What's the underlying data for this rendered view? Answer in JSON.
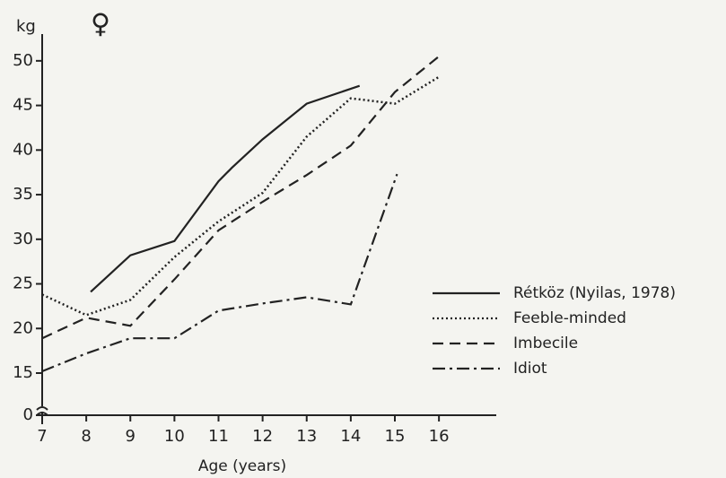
{
  "chart_data": {
    "type": "line",
    "title": "♀",
    "y_label": "kg",
    "x_label": "Age (years)",
    "xlim": [
      7,
      17.3
    ],
    "ylim": [
      0,
      53
    ],
    "axis_break": true,
    "xticks": [
      7,
      8,
      9,
      10,
      11,
      12,
      13,
      14,
      15,
      16
    ],
    "yticks": [
      0,
      15,
      20,
      25,
      30,
      35,
      40,
      45,
      50
    ],
    "grid": false,
    "legend": "right",
    "series": [
      {
        "name": "Rétköz (Nyilas, 1978)",
        "color": "#222222",
        "dash": "solid",
        "x": [
          8.1,
          9,
          10,
          11,
          11.3,
          12,
          13,
          14.2
        ],
        "values": [
          24.1,
          28.2,
          29.8,
          36.5,
          38,
          41.2,
          45.2,
          47.2
        ]
      },
      {
        "name": "Feeble-minded",
        "color": "#222222",
        "dash": "dotted",
        "x": [
          7,
          8,
          9,
          10,
          11,
          12,
          13,
          14,
          15,
          16
        ],
        "values": [
          23.8,
          21.5,
          23.2,
          28,
          32,
          35.2,
          41.5,
          45.8,
          45.2,
          48.2
        ]
      },
      {
        "name": "Imbecile",
        "color": "#222222",
        "dash": "dashed",
        "x": [
          7,
          8,
          9,
          10,
          11,
          12,
          13,
          14,
          15,
          16
        ],
        "values": [
          18.9,
          21.2,
          20.3,
          25.5,
          31,
          34.2,
          37.2,
          40.5,
          46.5,
          50.5
        ]
      },
      {
        "name": "Idiot",
        "color": "#222222",
        "dash": "dashdot",
        "x": [
          7,
          8,
          9,
          10,
          11,
          12,
          13,
          14,
          15.05
        ],
        "values": [
          15.2,
          17.2,
          18.9,
          18.9,
          22,
          22.8,
          23.5,
          22.7,
          37.3
        ]
      }
    ]
  }
}
